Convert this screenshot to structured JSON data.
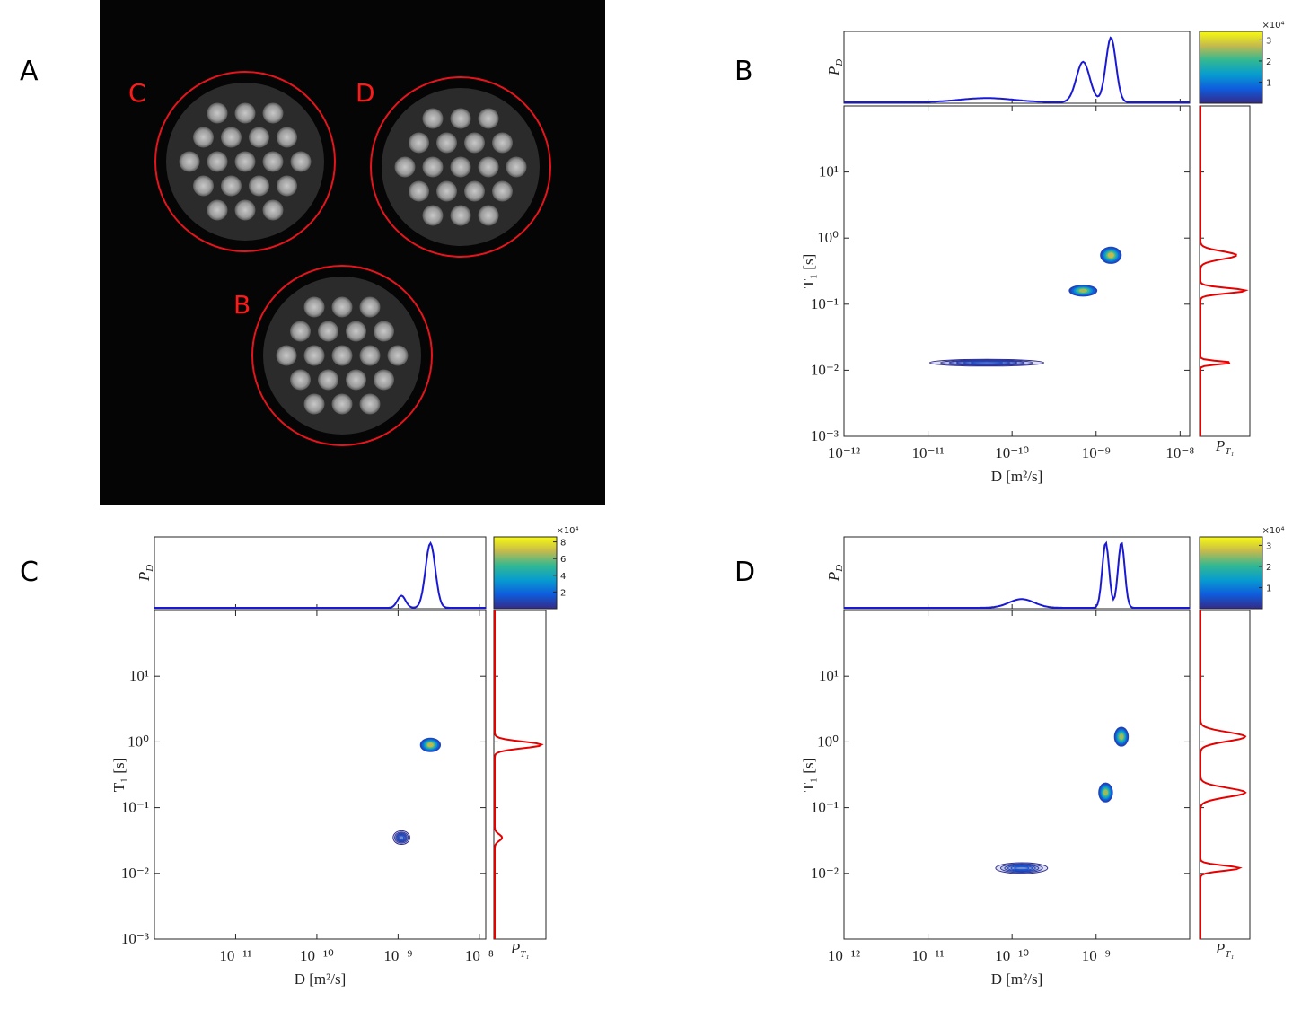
{
  "image_panel": {
    "label": "A",
    "regions": [
      {
        "label": "C"
      },
      {
        "label": "D"
      },
      {
        "label": "B"
      }
    ]
  },
  "chart_data": [
    {
      "type": "contour",
      "panel": "B",
      "xlabel": "D [m²/s]",
      "ylabel": "T₁ [s]",
      "top_ylabel": {
        "main": "P",
        "sub": "D"
      },
      "right_xlabel": {
        "main": "P",
        "sub": "T₁"
      },
      "xscale": "log",
      "yscale": "log",
      "xlim": [
        1e-12,
        1.3e-08
      ],
      "ylim": [
        0.001,
        100
      ],
      "xticks": [
        {
          "value": 1e-12,
          "label": "10⁻¹²"
        },
        {
          "value": 1e-11,
          "label": "10⁻¹¹"
        },
        {
          "value": 1e-10,
          "label": "10⁻¹⁰"
        },
        {
          "value": 1e-09,
          "label": "10⁻⁹"
        },
        {
          "value": 1e-08,
          "label": "10⁻⁸"
        }
      ],
      "yticks": [
        {
          "value": 0.001,
          "label": "10⁻³"
        },
        {
          "value": 0.01,
          "label": "10⁻²"
        },
        {
          "value": 0.1,
          "label": "10⁻¹"
        },
        {
          "value": 1,
          "label": "10⁰"
        },
        {
          "value": 10,
          "label": "10¹"
        }
      ],
      "clim": [
        0,
        3.4
      ],
      "cticks": [
        1,
        2,
        3
      ],
      "cscale_label": "×10⁴",
      "marginal_colors": {
        "D": "#1a1ad6",
        "T1": "#e60000"
      },
      "peaks": {
        "D": [
          1.5e-09,
          7e-10,
          5e-11
        ],
        "T1": [
          0.55,
          0.16,
          0.013
        ],
        "amplitude": [
          3.2,
          3.0,
          0.5
        ],
        "D_width": [
          0.06,
          0.08,
          0.33
        ],
        "T1_width": [
          0.06,
          0.04,
          0.025
        ]
      }
    },
    {
      "type": "contour",
      "panel": "C",
      "xlabel": "D [m²/s]",
      "ylabel": "T₁ [s]",
      "top_ylabel": {
        "main": "P",
        "sub": "D"
      },
      "right_xlabel": {
        "main": "P",
        "sub": "T₁"
      },
      "xscale": "log",
      "yscale": "log",
      "xlim": [
        1e-12,
        1.2e-08
      ],
      "ylim": [
        0.001,
        100
      ],
      "xticks": [
        {
          "value": 1e-11,
          "label": "10⁻¹¹"
        },
        {
          "value": 1e-10,
          "label": "10⁻¹⁰"
        },
        {
          "value": 1e-09,
          "label": "10⁻⁹"
        },
        {
          "value": 1e-08,
          "label": "10⁻⁸"
        }
      ],
      "yticks": [
        {
          "value": 0.001,
          "label": "10⁻³"
        },
        {
          "value": 0.01,
          "label": "10⁻²"
        },
        {
          "value": 0.1,
          "label": "10⁻¹"
        },
        {
          "value": 1,
          "label": "10⁰"
        },
        {
          "value": 10,
          "label": "10¹"
        }
      ],
      "clim": [
        0,
        8.6
      ],
      "cticks": [
        2,
        4,
        6,
        8
      ],
      "cscale_label": "×10⁴",
      "marginal_colors": {
        "D": "#1a1ad6",
        "T1": "#e60000"
      },
      "peaks": {
        "D": [
          2.5e-09,
          1.1e-09
        ],
        "T1": [
          0.9,
          0.035
        ],
        "amplitude": [
          8,
          1.5
        ],
        "D_width": [
          0.06,
          0.05
        ],
        "T1_width": [
          0.05,
          0.05
        ]
      }
    },
    {
      "type": "contour",
      "panel": "D",
      "xlabel": "D [m²/s]",
      "ylabel": "T₁ [s]",
      "top_ylabel": {
        "main": "P",
        "sub": "D"
      },
      "right_xlabel": {
        "main": "P",
        "sub": "T₁"
      },
      "xscale": "log",
      "yscale": "log",
      "xlim": [
        1e-12,
        1.3e-08
      ],
      "ylim": [
        0.001,
        100
      ],
      "xticks": [
        {
          "value": 1e-12,
          "label": "10⁻¹²"
        },
        {
          "value": 1e-11,
          "label": "10⁻¹¹"
        },
        {
          "value": 1e-10,
          "label": "10⁻¹⁰"
        },
        {
          "value": 1e-09,
          "label": "10⁻⁹"
        }
      ],
      "yticks": [
        {
          "value": 0.01,
          "label": "10⁻²"
        },
        {
          "value": 0.1,
          "label": "10⁻¹"
        },
        {
          "value": 1,
          "label": "10⁰"
        },
        {
          "value": 10,
          "label": "10¹"
        }
      ],
      "clim": [
        0,
        3.4
      ],
      "cticks": [
        1,
        2,
        3
      ],
      "cscale_label": "×10⁴",
      "marginal_colors": {
        "D": "#1a1ad6",
        "T1": "#e60000"
      },
      "peaks": {
        "D": [
          2e-09,
          1.3e-09,
          1.3e-10
        ],
        "T1": [
          1.2,
          0.17,
          0.012
        ],
        "amplitude": [
          3,
          3,
          0.7
        ],
        "D_width": [
          0.04,
          0.04,
          0.15
        ],
        "T1_width": [
          0.07,
          0.07,
          0.04
        ]
      }
    }
  ]
}
